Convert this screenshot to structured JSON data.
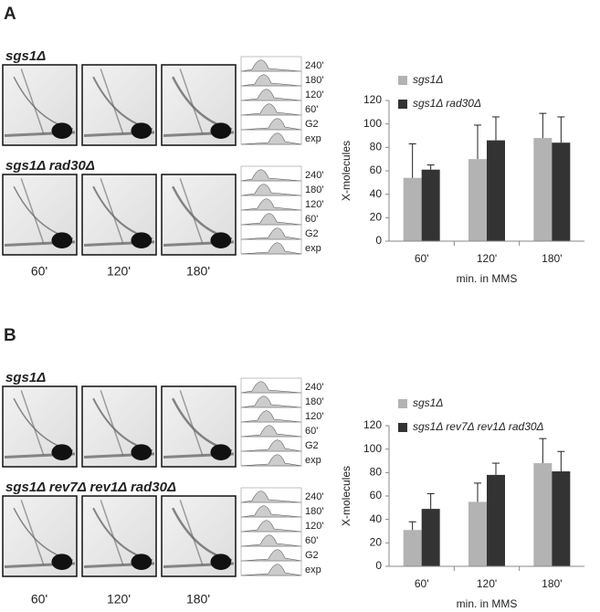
{
  "panels": [
    {
      "label": "A",
      "strains": [
        "sgs1Δ",
        "sgs1Δ rad30Δ"
      ],
      "timepoints": [
        "60'",
        "120'",
        "180'"
      ],
      "facs_labels": [
        "240'",
        "180'",
        "120'",
        "60'",
        "G2",
        "exp"
      ]
    },
    {
      "label": "B",
      "strains": [
        "sgs1Δ",
        "sgs1Δ rev7Δ rev1Δ rad30Δ"
      ],
      "timepoints": [
        "60'",
        "120'",
        "180'"
      ],
      "facs_labels": [
        "240'",
        "180'",
        "120'",
        "60'",
        "G2",
        "exp"
      ]
    }
  ],
  "chart_data": [
    {
      "type": "bar",
      "categories": [
        "60'",
        "120'",
        "180'"
      ],
      "x_label": "min. in MMS",
      "y_label": "X-molecules",
      "ylim": [
        0,
        120
      ],
      "yticks": [
        0,
        20,
        40,
        60,
        80,
        100,
        120
      ],
      "series": [
        {
          "name": "sgs1Δ",
          "color": "#b3b3b3",
          "values": [
            54,
            70,
            88
          ],
          "errors": [
            29,
            29,
            21
          ]
        },
        {
          "name": "sgs1Δ rad30Δ",
          "color": "#333333",
          "values": [
            61,
            86,
            84
          ],
          "errors": [
            4,
            20,
            22
          ]
        }
      ]
    },
    {
      "type": "bar",
      "categories": [
        "60'",
        "120'",
        "180'"
      ],
      "x_label": "min. in MMS",
      "y_label": "X-molecules",
      "ylim": [
        0,
        120
      ],
      "yticks": [
        0,
        20,
        40,
        60,
        80,
        100,
        120
      ],
      "series": [
        {
          "name": "sgs1Δ",
          "color": "#b3b3b3",
          "values": [
            31,
            55,
            88
          ],
          "errors": [
            7,
            16,
            21
          ]
        },
        {
          "name": "sgs1Δ rev7Δ rev1Δ rad30Δ",
          "color": "#333333",
          "values": [
            49,
            78,
            81
          ],
          "errors": [
            13,
            10,
            17
          ]
        }
      ]
    }
  ]
}
